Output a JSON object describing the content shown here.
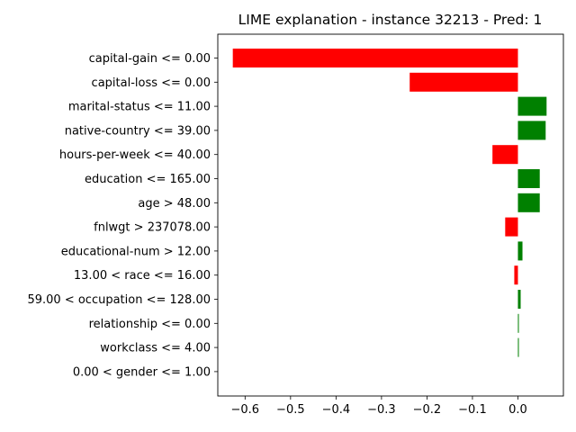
{
  "chart_data": {
    "type": "bar",
    "orientation": "horizontal",
    "title": "LIME explanation - instance 32213 - Pred: 1",
    "xlabel": "",
    "ylabel": "",
    "xlim": [
      -0.66,
      0.1
    ],
    "xticks": [
      -0.6,
      -0.5,
      -0.4,
      -0.3,
      -0.2,
      -0.1,
      0.0
    ],
    "xtick_labels": [
      "−0.6",
      "−0.5",
      "−0.4",
      "−0.3",
      "−0.2",
      "−0.1",
      "0.0"
    ],
    "grid": false,
    "legend": "none",
    "positive_color": "#008000",
    "negative_color": "#ff0000",
    "categories": [
      "capital-gain <= 0.00",
      "capital-loss <= 0.00",
      "marital-status <= 11.00",
      "native-country <= 39.00",
      "hours-per-week <= 40.00",
      "education <= 165.00",
      "age > 48.00",
      "fnlwgt > 237078.00",
      "educational-num > 12.00",
      "13.00 < race <= 16.00",
      "59.00 < occupation <= 128.00",
      "relationship <= 0.00",
      "workclass <= 4.00",
      "0.00 < gender <= 1.00"
    ],
    "values": [
      -0.627,
      -0.238,
      0.063,
      0.061,
      -0.056,
      0.048,
      0.048,
      -0.028,
      0.01,
      -0.008,
      0.006,
      0.002,
      0.002,
      0.0
    ]
  }
}
